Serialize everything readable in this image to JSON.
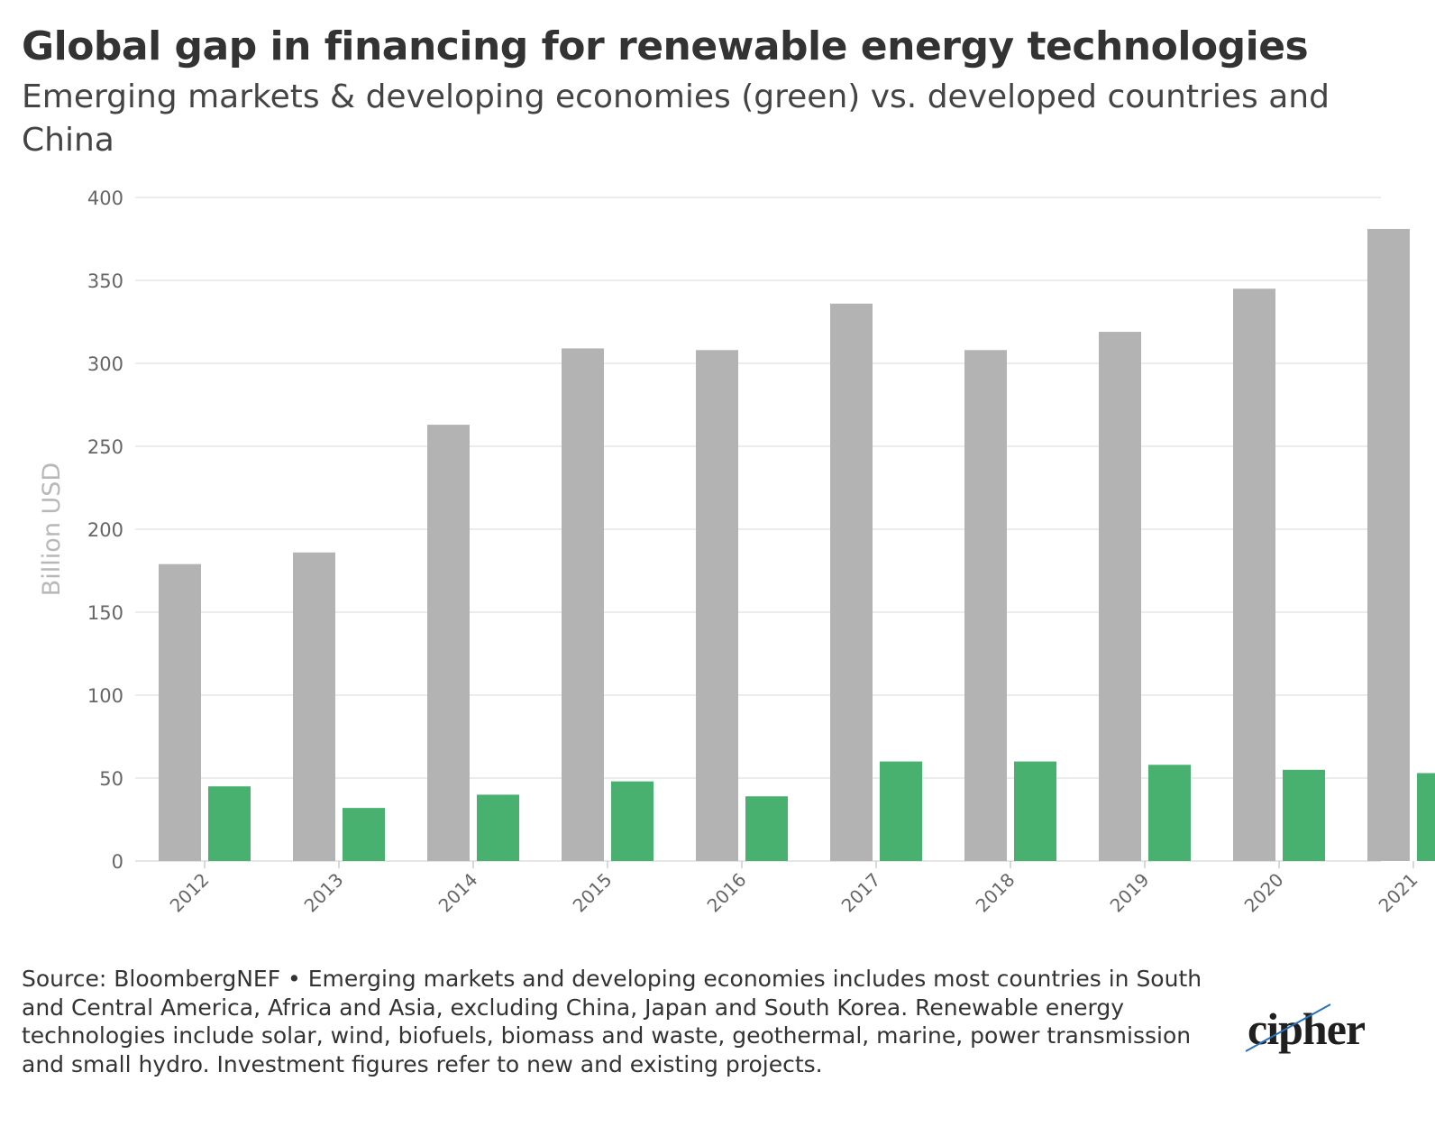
{
  "header": {
    "title": "Global gap in financing for renewable energy technologies",
    "subtitle": "Emerging markets & developing economies (green) vs. developed countries and China"
  },
  "footer": {
    "source": "Source: BloombergNEF • Emerging markets and developing economies includes most countries in South and Central America, Africa and Asia, excluding China, Japan and South Korea. Renewable energy technologies include solar, wind, biofuels, biomass and waste, geothermal, marine, power transmission and small hydro. Investment figures refer to new and existing projects.",
    "logo_text": "cipher"
  },
  "colors": {
    "grey_series": "#b3b3b3",
    "green_series": "#48b16f",
    "gridline": "#e6e6e6",
    "tick_text": "#666666",
    "axis_label": "#b8b8b8"
  },
  "chart_data": {
    "type": "bar",
    "title": "Global gap in financing for renewable energy technologies",
    "subtitle": "Emerging markets & developing economies (green) vs. developed countries and China",
    "xlabel": "",
    "ylabel": "Billion USD",
    "ylim": [
      0,
      400
    ],
    "yticks": [
      0,
      50,
      100,
      150,
      200,
      250,
      300,
      350,
      400
    ],
    "grid": true,
    "categories": [
      "2012",
      "2013",
      "2014",
      "2015",
      "2016",
      "2017",
      "2018",
      "2019",
      "2020",
      "2021"
    ],
    "series": [
      {
        "color": "#b3b3b3",
        "values": [
          179,
          186,
          263,
          309,
          308,
          336,
          308,
          319,
          345,
          381
        ]
      },
      {
        "color": "#48b16f",
        "values": [
          45,
          32,
          40,
          48,
          39,
          60,
          60,
          58,
          55,
          53
        ]
      }
    ]
  }
}
